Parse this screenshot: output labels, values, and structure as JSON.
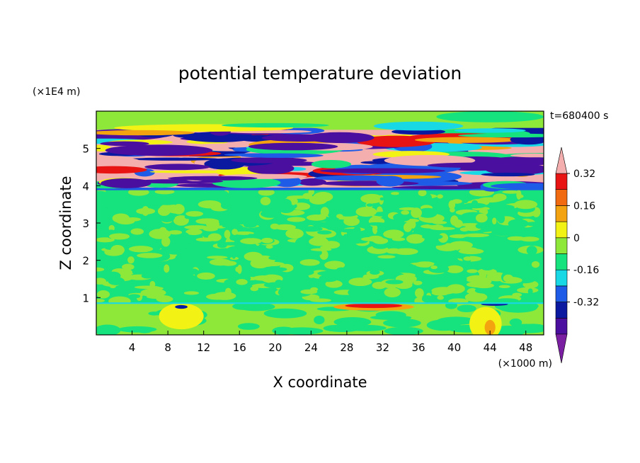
{
  "chart_data": {
    "type": "heatmap",
    "title": "potential temperature deviation",
    "xlabel": "X coordinate",
    "ylabel": "Z coordinate",
    "x_unit": "(×1000 m)",
    "y_unit": "(×1E4 m)",
    "time_label": "t=680400 s",
    "xlim": [
      0,
      50
    ],
    "ylim": [
      0,
      6
    ],
    "x_ticks": [
      "4",
      "8",
      "12",
      "16",
      "20",
      "24",
      "28",
      "32",
      "36",
      "40",
      "44",
      "48"
    ],
    "y_ticks": [
      "1",
      "2",
      "3",
      "4",
      "5"
    ],
    "colorbar": {
      "levels": [
        -0.48,
        -0.4,
        -0.32,
        -0.24,
        -0.16,
        -0.08,
        0,
        0.08,
        0.16,
        0.24,
        0.32,
        0.4
      ],
      "colors": [
        "#7a1fa2",
        "#4b0fa0",
        "#0a19a0",
        "#1e5be6",
        "#18d8e6",
        "#16e27e",
        "#8ee83a",
        "#f2f214",
        "#f3a310",
        "#f26a10",
        "#e81414",
        "#f4aeae"
      ],
      "tick_labels": [
        "0.32",
        "0.16",
        "0",
        "-0.16",
        "-0.32"
      ]
    }
  }
}
